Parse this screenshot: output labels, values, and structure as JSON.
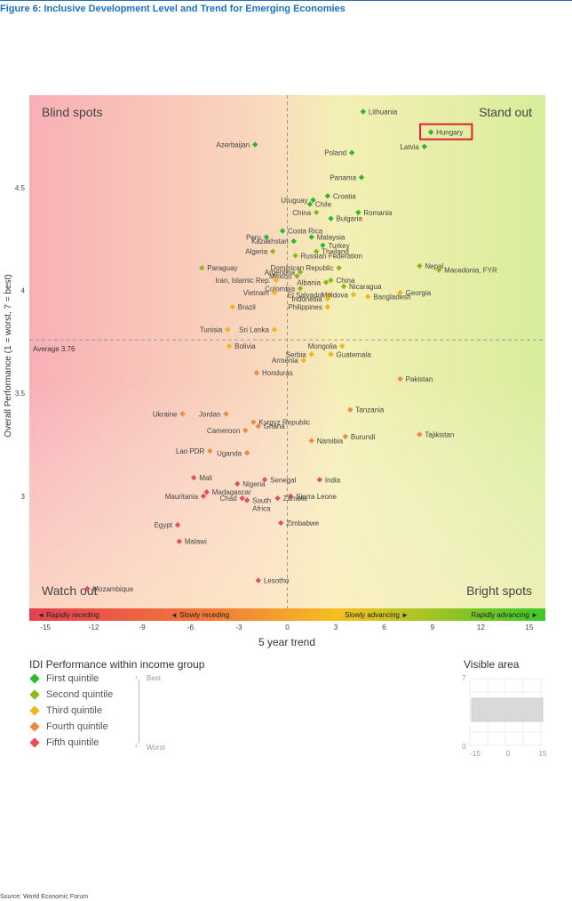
{
  "figure_title": "Figure 6: Inclusive Development Level and Trend for Emerging Economies",
  "source": "Source: World Economic Forum",
  "colors": {
    "q1": "#2eb82e",
    "q2": "#8ab81a",
    "q3": "#f2b41f",
    "q4": "#ec8a3e",
    "q5": "#e5505a"
  },
  "legend": {
    "title": "IDI Performance within income group",
    "items": [
      {
        "label": "First quintile",
        "color": "#2eb82e"
      },
      {
        "label": "Second quintile",
        "color": "#8ab81a"
      },
      {
        "label": "Third quintile",
        "color": "#f2b41f"
      },
      {
        "label": "Fourth quintile",
        "color": "#ec8a3e"
      },
      {
        "label": "Fifth quintile",
        "color": "#e5505a"
      }
    ],
    "best": "Best",
    "worst": "Worst"
  },
  "visible_area": {
    "title": "Visible area",
    "y_ticks": [
      "7",
      "0"
    ],
    "x_ticks": [
      "-15",
      "0",
      "15"
    ]
  },
  "chart_data": {
    "type": "scatter",
    "xlabel": "5 year trend",
    "ylabel": "Overall Performance (1 = worst, 7 = best)",
    "xlim": [
      -16,
      16
    ],
    "ylim": [
      2.45,
      4.95
    ],
    "x_ticks": [
      -15,
      -12,
      -9,
      -6,
      -3,
      0,
      3,
      6,
      9,
      12,
      15
    ],
    "y_ticks": [
      3,
      3.5,
      4,
      4.5
    ],
    "y_tick_labels": [
      "3",
      "3.5",
      "4",
      "4.5"
    ],
    "average": {
      "value": 3.76,
      "label": "Average 3.76"
    },
    "quadrants": {
      "top_left": "Blind spots",
      "top_right": "Stand out",
      "bottom_left": "Watch out",
      "bottom_right": "Bright spots"
    },
    "trend_bar": [
      "◄  Rapidly receding",
      "◄  Slowly receding",
      "Slowly advancing  ►",
      "Rapidly advancing  ►"
    ],
    "highlight": "Hungary",
    "points": [
      {
        "name": "Lithuania",
        "x": 4.7,
        "y": 4.87,
        "q": 1,
        "pos": "r"
      },
      {
        "name": "Hungary",
        "x": 8.9,
        "y": 4.77,
        "q": 1,
        "pos": "r"
      },
      {
        "name": "Latvia",
        "x": 8.5,
        "y": 4.7,
        "q": 1,
        "pos": "l"
      },
      {
        "name": "Azerbaijan",
        "x": -2.0,
        "y": 4.71,
        "q": 1,
        "pos": "l"
      },
      {
        "name": "Poland",
        "x": 4.0,
        "y": 4.67,
        "q": 1,
        "pos": "l"
      },
      {
        "name": "Panama",
        "x": 4.6,
        "y": 4.55,
        "q": 1,
        "pos": "l"
      },
      {
        "name": "Croatia",
        "x": 2.5,
        "y": 4.46,
        "q": 1,
        "pos": "r"
      },
      {
        "name": "Uruguay",
        "x": 1.6,
        "y": 4.44,
        "q": 1,
        "pos": "l"
      },
      {
        "name": "Chile",
        "x": 1.4,
        "y": 4.42,
        "q": 1,
        "pos": "r"
      },
      {
        "name": "Romania",
        "x": 4.4,
        "y": 4.38,
        "q": 1,
        "pos": "r"
      },
      {
        "name": "China",
        "x": 1.8,
        "y": 4.38,
        "q": 2,
        "pos": "l"
      },
      {
        "name": "Bulgaria",
        "x": 2.7,
        "y": 4.35,
        "q": 1,
        "pos": "r"
      },
      {
        "name": "Costa Rica",
        "x": -0.3,
        "y": 4.29,
        "q": 1,
        "pos": "r"
      },
      {
        "name": "Peru",
        "x": -1.3,
        "y": 4.26,
        "q": 1,
        "pos": "l"
      },
      {
        "name": "Malaysia",
        "x": 1.5,
        "y": 4.26,
        "q": 1,
        "pos": "r"
      },
      {
        "name": "Kazakhstan",
        "x": 0.4,
        "y": 4.24,
        "q": 1,
        "pos": "l"
      },
      {
        "name": "Turkey",
        "x": 2.2,
        "y": 4.22,
        "q": 1,
        "pos": "r"
      },
      {
        "name": "Algeria",
        "x": -0.9,
        "y": 4.19,
        "q": 2,
        "pos": "l"
      },
      {
        "name": "Thailand",
        "x": 1.8,
        "y": 4.19,
        "q": 2,
        "pos": "r"
      },
      {
        "name": "Russian Federation",
        "x": 0.5,
        "y": 4.17,
        "q": 2,
        "pos": "r"
      },
      {
        "name": "Nepal",
        "x": 8.2,
        "y": 4.12,
        "q": 2,
        "pos": "r"
      },
      {
        "name": "Macedonia, FYR",
        "x": 9.4,
        "y": 4.1,
        "q": 2,
        "pos": "r"
      },
      {
        "name": "Dominican Republic",
        "x": 3.2,
        "y": 4.11,
        "q": 2,
        "pos": "l"
      },
      {
        "name": "Paraguay",
        "x": -5.3,
        "y": 4.11,
        "q": 2,
        "pos": "r"
      },
      {
        "name": "Argentina",
        "x": 0.8,
        "y": 4.09,
        "q": 2,
        "pos": "l"
      },
      {
        "name": "Mexico",
        "x": 0.6,
        "y": 4.07,
        "q": 2,
        "pos": "l"
      },
      {
        "name": "China",
        "x": 2.7,
        "y": 4.05,
        "q": 2,
        "pos": "r"
      },
      {
        "name": "Iran, Islamic Rep.",
        "x": -0.7,
        "y": 4.05,
        "q": 3,
        "pos": "l"
      },
      {
        "name": "Albania",
        "x": 2.4,
        "y": 4.04,
        "q": 2,
        "pos": "l"
      },
      {
        "name": "Nicaragua",
        "x": 3.5,
        "y": 4.02,
        "q": 2,
        "pos": "r"
      },
      {
        "name": "Colombia",
        "x": 0.8,
        "y": 4.01,
        "q": 2,
        "pos": "l"
      },
      {
        "name": "Vietnam",
        "x": -0.8,
        "y": 3.99,
        "q": 3,
        "pos": "l"
      },
      {
        "name": "Georgia",
        "x": 7.0,
        "y": 3.99,
        "q": 3,
        "pos": "r"
      },
      {
        "name": "El Salvador",
        "x": 2.6,
        "y": 3.98,
        "q": 3,
        "pos": "l"
      },
      {
        "name": "Moldova",
        "x": 4.1,
        "y": 3.98,
        "q": 3,
        "pos": "l"
      },
      {
        "name": "Bangladesh",
        "x": 5.0,
        "y": 3.97,
        "q": 3,
        "pos": "r"
      },
      {
        "name": "Indonesia",
        "x": 2.5,
        "y": 3.96,
        "q": 3,
        "pos": "l"
      },
      {
        "name": "Philippines",
        "x": 2.5,
        "y": 3.92,
        "q": 3,
        "pos": "l"
      },
      {
        "name": "Brazil",
        "x": -3.4,
        "y": 3.92,
        "q": 3,
        "pos": "r"
      },
      {
        "name": "Tunisia",
        "x": -3.7,
        "y": 3.81,
        "q": 3,
        "pos": "l"
      },
      {
        "name": "Sri Lanka",
        "x": -0.8,
        "y": 3.81,
        "q": 3,
        "pos": "l"
      },
      {
        "name": "Bolivia",
        "x": -3.6,
        "y": 3.73,
        "q": 3,
        "pos": "r"
      },
      {
        "name": "Mongolia",
        "x": 3.4,
        "y": 3.73,
        "q": 3,
        "pos": "l"
      },
      {
        "name": "Serbia",
        "x": 1.5,
        "y": 3.69,
        "q": 3,
        "pos": "l"
      },
      {
        "name": "Guatemala",
        "x": 2.7,
        "y": 3.69,
        "q": 3,
        "pos": "r"
      },
      {
        "name": "Armenia",
        "x": 1.0,
        "y": 3.66,
        "q": 3,
        "pos": "l"
      },
      {
        "name": "Honduras",
        "x": -1.9,
        "y": 3.6,
        "q": 4,
        "pos": "r"
      },
      {
        "name": "Pakistan",
        "x": 7.0,
        "y": 3.57,
        "q": 4,
        "pos": "r"
      },
      {
        "name": "Tanzania",
        "x": 3.9,
        "y": 3.42,
        "q": 4,
        "pos": "r"
      },
      {
        "name": "Ukraine",
        "x": -6.5,
        "y": 3.4,
        "q": 4,
        "pos": "l"
      },
      {
        "name": "Jordan",
        "x": -3.8,
        "y": 3.4,
        "q": 4,
        "pos": "l"
      },
      {
        "name": "Kyrgyz Republic",
        "x": -2.1,
        "y": 3.36,
        "q": 4,
        "pos": "r"
      },
      {
        "name": "Ghana",
        "x": -1.8,
        "y": 3.34,
        "q": 4,
        "pos": "r"
      },
      {
        "name": "Cameroon",
        "x": -2.6,
        "y": 3.32,
        "q": 4,
        "pos": "l"
      },
      {
        "name": "Tajikistan",
        "x": 8.2,
        "y": 3.3,
        "q": 4,
        "pos": "r"
      },
      {
        "name": "Burundi",
        "x": 3.6,
        "y": 3.29,
        "q": 4,
        "pos": "r"
      },
      {
        "name": "Namibia",
        "x": 1.5,
        "y": 3.27,
        "q": 4,
        "pos": "r"
      },
      {
        "name": "Lao PDR",
        "x": -4.8,
        "y": 3.22,
        "q": 4,
        "pos": "l"
      },
      {
        "name": "Uganda",
        "x": -2.5,
        "y": 3.21,
        "q": 4,
        "pos": "l"
      },
      {
        "name": "Mali",
        "x": -5.8,
        "y": 3.09,
        "q": 5,
        "pos": "r"
      },
      {
        "name": "Senegal",
        "x": -1.4,
        "y": 3.08,
        "q": 5,
        "pos": "r"
      },
      {
        "name": "India",
        "x": 2.0,
        "y": 3.08,
        "q": 5,
        "pos": "r"
      },
      {
        "name": "Nigeria",
        "x": -3.1,
        "y": 3.06,
        "q": 5,
        "pos": "r"
      },
      {
        "name": "Madagascar",
        "x": -5.0,
        "y": 3.02,
        "q": 5,
        "pos": "r"
      },
      {
        "name": "Mauritania",
        "x": -5.2,
        "y": 3.0,
        "q": 5,
        "pos": "l"
      },
      {
        "name": "Sierra Leone",
        "x": 0.2,
        "y": 3.0,
        "q": 5,
        "pos": "r"
      },
      {
        "name": "Chad",
        "x": -2.8,
        "y": 2.99,
        "q": 5,
        "pos": "l"
      },
      {
        "name": "South Africa",
        "x": -2.5,
        "y": 2.98,
        "q": 5,
        "pos": "r"
      },
      {
        "name": "Zambia",
        "x": -0.6,
        "y": 2.99,
        "q": 5,
        "pos": "r"
      },
      {
        "name": "Egypt",
        "x": -6.8,
        "y": 2.86,
        "q": 5,
        "pos": "l"
      },
      {
        "name": "Zimbabwe",
        "x": -0.4,
        "y": 2.87,
        "q": 5,
        "pos": "r"
      },
      {
        "name": "Malawi",
        "x": -6.7,
        "y": 2.78,
        "q": 5,
        "pos": "r"
      },
      {
        "name": "Lesotho",
        "x": -1.8,
        "y": 2.59,
        "q": 5,
        "pos": "r"
      },
      {
        "name": "Mozambique",
        "x": -12.4,
        "y": 2.55,
        "q": 5,
        "pos": "r"
      }
    ]
  }
}
